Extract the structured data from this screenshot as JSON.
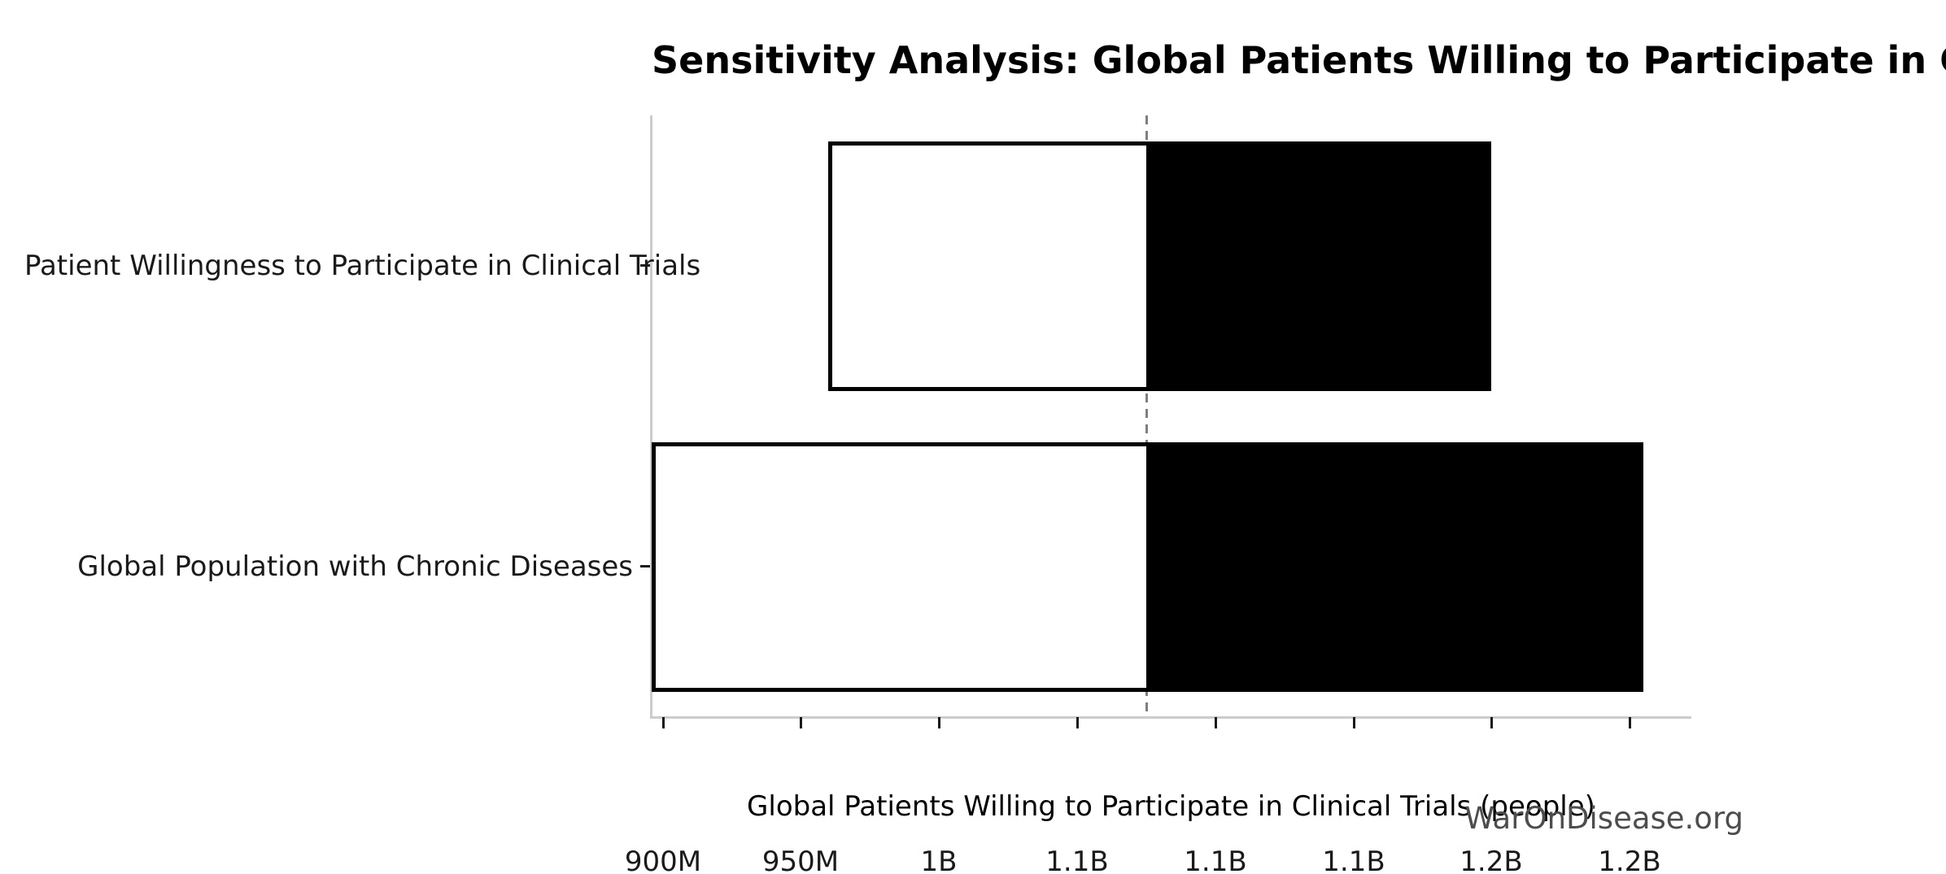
{
  "figure": {
    "watermark": "WarOnDisease.org"
  },
  "chart_data": {
    "type": "bar",
    "subtype": "tornado-sensitivity-horizontal",
    "title": "Sensitivity Analysis: Global Patients Willing to Participate in Clinical Trials",
    "xlabel": "Global Patients Willing to Participate in Clinical Trials (people)",
    "ylabel": "",
    "categories": [
      "Patient Willingness to Participate in Clinical Trials",
      "Global Population with Chronic Diseases"
    ],
    "bars": [
      {
        "category": "Patient Willingness to Participate in Clinical Trials",
        "low": 960000000,
        "high": 1200000000
      },
      {
        "category": "Global Population with Chronic Diseases",
        "low": 896000000,
        "high": 1255000000
      }
    ],
    "base_value": 1075000000,
    "baseline_style": "dashed-gray-vertical",
    "xlim": [
      896000000,
      1272000000
    ],
    "x_ticks": {
      "values": [
        900000000,
        950000000,
        1000000000,
        1050000000,
        1100000000,
        1150000000,
        1200000000,
        1250000000
      ],
      "labels": [
        "900M",
        "950M",
        "1B",
        "1.1B",
        "1.1B",
        "1.1B",
        "1.2B",
        "1.2B"
      ]
    },
    "grid": false,
    "legend": "none",
    "colors": {
      "low_segment_fill": "#ffffff",
      "high_segment_fill": "#000000",
      "bar_border": "#000000",
      "baseline": "#7f7f7f",
      "spine": "#cccccc",
      "tick": "#1a1a1a",
      "watermark_text": "#4d4d4d"
    }
  }
}
